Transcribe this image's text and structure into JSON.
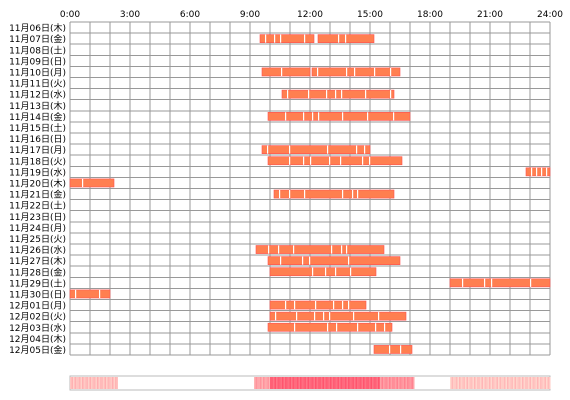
{
  "chart_data": {
    "type": "timeline",
    "title": "",
    "xlabel": "",
    "ylabel": "",
    "x_range_hours": [
      0,
      24
    ],
    "x_ticks": [
      {
        "hour": 0,
        "label": "0:00"
      },
      {
        "hour": 3,
        "label": "3:00"
      },
      {
        "hour": 6,
        "label": "6:00"
      },
      {
        "hour": 9,
        "label": "9:00"
      },
      {
        "hour": 12,
        "label": "12:00"
      },
      {
        "hour": 15,
        "label": "15:00"
      },
      {
        "hour": 18,
        "label": "18:00"
      },
      {
        "hour": 21,
        "label": "21:00"
      },
      {
        "hour": 24,
        "label": "24:00"
      }
    ],
    "grid": true,
    "colors": {
      "bar_fill": "#ff7f50",
      "bar_stroke": "#ff5050",
      "grid": "#999999",
      "heat_low": "#ffe5d9",
      "heat_high": "#ff4f6a"
    },
    "rows": [
      {
        "label": "11月06日(木)",
        "segments": []
      },
      {
        "label": "11月07日(金)",
        "segments": [
          [
            9.5,
            12.2
          ],
          [
            12.4,
            15.2
          ]
        ]
      },
      {
        "label": "11月08日(土)",
        "segments": []
      },
      {
        "label": "11月09日(日)",
        "segments": []
      },
      {
        "label": "11月10日(月)",
        "segments": [
          [
            9.6,
            12.0
          ],
          [
            12.1,
            16.5
          ]
        ]
      },
      {
        "label": "11月11日(火)",
        "segments": []
      },
      {
        "label": "11月12日(水)",
        "segments": [
          [
            10.6,
            16.2
          ]
        ]
      },
      {
        "label": "11月13日(木)",
        "segments": []
      },
      {
        "label": "11月14日(金)",
        "segments": [
          [
            9.9,
            17.0
          ]
        ]
      },
      {
        "label": "11月15日(土)",
        "segments": []
      },
      {
        "label": "11月16日(日)",
        "segments": []
      },
      {
        "label": "11月17日(月)",
        "segments": [
          [
            9.6,
            15.0
          ]
        ]
      },
      {
        "label": "11月18日(火)",
        "segments": [
          [
            9.9,
            16.6
          ]
        ]
      },
      {
        "label": "11月19日(水)",
        "segments": [
          [
            22.8,
            24.0
          ]
        ]
      },
      {
        "label": "11月20日(木)",
        "segments": [
          [
            0.0,
            2.2
          ]
        ]
      },
      {
        "label": "11月21日(金)",
        "segments": [
          [
            10.2,
            16.2
          ]
        ]
      },
      {
        "label": "11月22日(土)",
        "segments": []
      },
      {
        "label": "11月23日(日)",
        "segments": []
      },
      {
        "label": "11月24日(月)",
        "segments": []
      },
      {
        "label": "11月25日(火)",
        "segments": []
      },
      {
        "label": "11月26日(水)",
        "segments": [
          [
            9.3,
            15.7
          ]
        ]
      },
      {
        "label": "11月27日(木)",
        "segments": [
          [
            9.9,
            16.5
          ]
        ]
      },
      {
        "label": "11月28日(金)",
        "segments": [
          [
            10.0,
            15.3
          ]
        ]
      },
      {
        "label": "11月29日(土)",
        "segments": [
          [
            19.0,
            24.0
          ]
        ]
      },
      {
        "label": "11月30日(日)",
        "segments": [
          [
            0.0,
            2.0
          ]
        ]
      },
      {
        "label": "12月01日(月)",
        "segments": [
          [
            10.0,
            14.8
          ]
        ]
      },
      {
        "label": "12月02日(火)",
        "segments": [
          [
            10.0,
            16.8
          ]
        ]
      },
      {
        "label": "12月03日(水)",
        "segments": [
          [
            9.9,
            16.1
          ]
        ]
      },
      {
        "label": "12月04日(木)",
        "segments": []
      },
      {
        "label": "12月05日(金)",
        "segments": [
          [
            15.2,
            17.1
          ]
        ]
      }
    ],
    "summary_heat": [
      {
        "range": [
          0.0,
          2.4
        ],
        "level": 0.25
      },
      {
        "range": [
          9.2,
          10.0
        ],
        "level": 0.45
      },
      {
        "range": [
          10.0,
          15.5
        ],
        "level": 0.85
      },
      {
        "range": [
          15.5,
          17.2
        ],
        "level": 0.55
      },
      {
        "range": [
          19.0,
          24.0
        ],
        "level": 0.2
      }
    ]
  }
}
